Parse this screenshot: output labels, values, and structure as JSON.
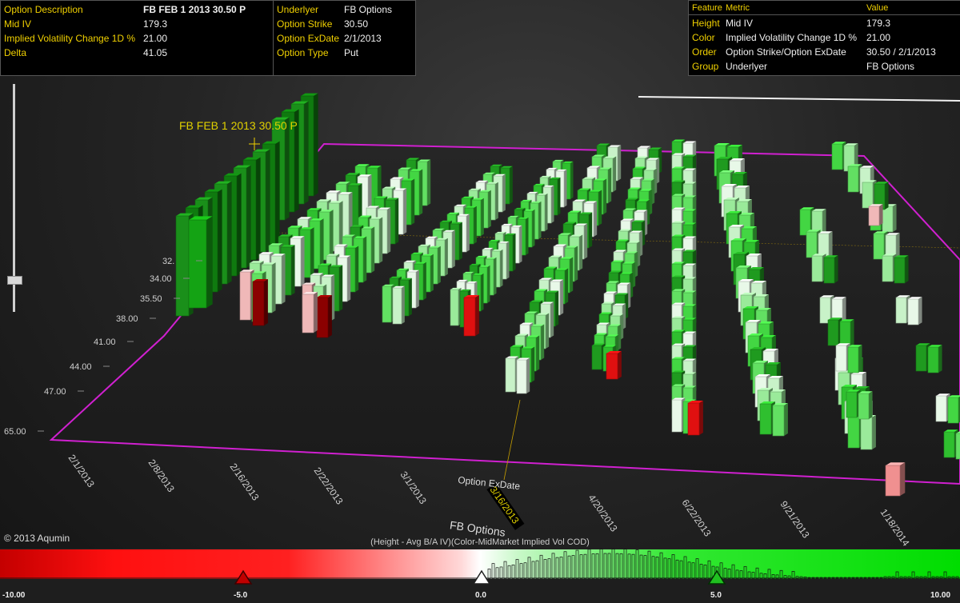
{
  "info_left": {
    "rows": [
      {
        "label": "Option Description",
        "value": "FB FEB 1 2013 30.50 P"
      },
      {
        "label": "Mid IV",
        "value": "179.3"
      },
      {
        "label": "Implied Volatility Change 1D %",
        "value": "21.00"
      },
      {
        "label": "Delta",
        "value": "41.05"
      }
    ]
  },
  "info_mid": {
    "rows": [
      {
        "label": "Underlyer",
        "value": "FB Options"
      },
      {
        "label": "Option Strike",
        "value": "30.50"
      },
      {
        "label": "Option ExDate",
        "value": "2/1/2013"
      },
      {
        "label": "Option Type",
        "value": "Put"
      }
    ]
  },
  "info_right": {
    "headers": {
      "feature": "Feature",
      "metric": "Metric",
      "value": "Value"
    },
    "rows": [
      {
        "feature": "Height",
        "metric": "Mid IV",
        "value": "179.3"
      },
      {
        "feature": "Color",
        "metric": "Implied Volatility Change 1D %",
        "value": "21.00"
      },
      {
        "feature": "Order",
        "metric": "Option Strike/Option ExDate",
        "value": "30.50 / 2/1/2013"
      },
      {
        "feature": "Group",
        "metric": "Underlyer",
        "value": "FB Options"
      }
    ]
  },
  "scene": {
    "selected_label": "FB FEB 1 2013 30.50 P",
    "strike_ticks": [
      "32.",
      "34.00",
      "35.50",
      "38.00",
      "41.00",
      "44.00",
      "47.00",
      "65.00"
    ],
    "date_ticks": [
      "2/1/2013",
      "2/8/2013",
      "2/16/2013",
      "2/22/2013",
      "3/1/2013",
      "3/16/2013",
      "4/20/2013",
      "6/22/2013",
      "9/21/2013",
      "1/18/2014"
    ],
    "highlighted_date": "3/16/2013",
    "axis_title": "Option ExDate"
  },
  "footer": {
    "copyright": "© 2013 Aqumin",
    "group_title": "FB Options",
    "legend_caption": "(Height - Avg B/A IV)(Color-MidMarket Implied Vol COD)"
  },
  "colorbar": {
    "ticks": [
      "-10.00",
      "-5.0",
      "0.0",
      "5.0",
      "10.00"
    ],
    "colors": {
      "negative": "#ff1010",
      "neutral": "#ffffff",
      "positive": "#00dd00"
    }
  }
}
